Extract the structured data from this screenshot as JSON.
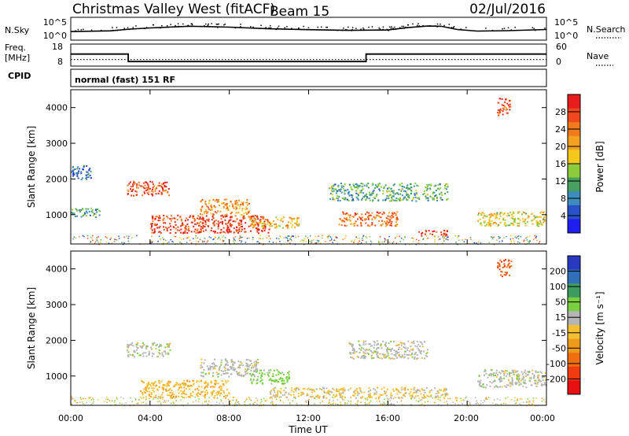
{
  "header": {
    "station": "Christmas Valley West (fitACF)",
    "beam": "Beam 15",
    "date": "02/Jul/2016"
  },
  "nsky_panel": {
    "left_label": "N.Sky",
    "right_label": "N.Search",
    "left_ticks": [
      "10^5",
      "10^0"
    ],
    "right_ticks": [
      "10^5",
      "10^0"
    ]
  },
  "freq_panel": {
    "left_label_line1": "Freq.",
    "left_label_line2": "[MHz]",
    "right_label": "Nave",
    "left_ticks": [
      "18",
      "8"
    ],
    "right_ticks": [
      "60",
      "0"
    ]
  },
  "cpid": {
    "label": "CPID",
    "value": "normal (fast) 151 RF"
  },
  "power_panel": {
    "ylabel": "Slant Range [km]",
    "colorbar_label": "Power [dB]",
    "colorbar_ticks": [
      "28",
      "24",
      "20",
      "16",
      "12",
      "8",
      "4"
    ],
    "colorbar_colors": [
      "#e81c1c",
      "#f0481c",
      "#f07a1c",
      "#f4a020",
      "#f4c81c",
      "#8ccc3c",
      "#48a060",
      "#3c8cbc",
      "#2850c8",
      "#1e1ef0"
    ]
  },
  "velocity_panel": {
    "ylabel": "Slant Range [km]",
    "colorbar_label": "Velocity [m s⁻¹]",
    "colorbar_ticks": [
      "200",
      "100",
      "50",
      "15",
      "-15",
      "-50",
      "-100",
      "-200"
    ],
    "colorbar_colors": [
      "#2838c0",
      "#3070b8",
      "#3c9c60",
      "#78d040",
      "#b4b4b4",
      "#f4c030",
      "#f09a1c",
      "#f06e10",
      "#f03c10",
      "#e81010"
    ]
  },
  "x_axis": {
    "ticks": [
      "00:00",
      "04:00",
      "08:00",
      "12:00",
      "16:00",
      "20:00",
      "00:00"
    ],
    "label": "Time UT"
  },
  "chart_data": {
    "type": "heatmap",
    "x_range_hours": [
      0,
      24
    ],
    "y_range_km": [
      180,
      4500
    ],
    "y_ticks_km": [
      1000,
      2000,
      3000,
      4000
    ],
    "nsky": {
      "scale": "log",
      "ylim": [
        1,
        100000
      ],
      "x_hours": [
        0,
        2,
        3,
        4,
        6,
        8,
        10,
        12,
        14,
        16,
        17,
        18,
        18.7,
        19.5,
        20.5,
        22,
        24
      ],
      "values": [
        60,
        90,
        250,
        500,
        1400,
        800,
        300,
        180,
        120,
        150,
        600,
        1500,
        1300,
        200,
        80,
        100,
        200
      ]
    },
    "frequency": {
      "ylim": [
        8,
        18
      ],
      "x_hours": [
        0,
        2.9,
        2.9,
        14.9,
        14.9,
        24
      ],
      "values_mhz": [
        15,
        15,
        10,
        10,
        15,
        15
      ]
    },
    "nave": {
      "ylim": [
        0,
        60
      ],
      "approx_value": 20
    },
    "power_regions": [
      {
        "t": [
          2.8,
          5.0
        ],
        "r": [
          1550,
          1950
        ],
        "level_db": 27
      },
      {
        "t": [
          4.0,
          10.0
        ],
        "r": [
          500,
          1000
        ],
        "level_db": 28
      },
      {
        "t": [
          6.5,
          9.0
        ],
        "r": [
          1000,
          1450
        ],
        "level_db": 22
      },
      {
        "t": [
          9.0,
          11.5
        ],
        "r": [
          650,
          950
        ],
        "level_db": 20
      },
      {
        "t": [
          13.5,
          16.5
        ],
        "r": [
          700,
          1100
        ],
        "level_db": 24
      },
      {
        "t": [
          17.5,
          19.0
        ],
        "r": [
          420,
          580
        ],
        "level_db": 28
      },
      {
        "t": [
          20.5,
          24.0
        ],
        "r": [
          700,
          1100
        ],
        "level_db": 18
      },
      {
        "t": [
          13.0,
          19.0
        ],
        "r": [
          1400,
          1900
        ],
        "level_db": 12
      },
      {
        "t": [
          0.0,
          1.5
        ],
        "r": [
          950,
          1200
        ],
        "level_db": 12
      },
      {
        "t": [
          0.0,
          1.0
        ],
        "r": [
          2000,
          2400
        ],
        "level_db": 8
      },
      {
        "t": [
          21.5,
          22.2
        ],
        "r": [
          3800,
          4300
        ],
        "level_db": 26
      }
    ],
    "velocity_regions": [
      {
        "t": [
          2.8,
          5.0
        ],
        "r": [
          1550,
          1950
        ],
        "level_ms": 0
      },
      {
        "t": [
          3.5,
          8.0
        ],
        "r": [
          400,
          900
        ],
        "level_ms": -40
      },
      {
        "t": [
          6.5,
          9.5
        ],
        "r": [
          1000,
          1500
        ],
        "level_ms": 0
      },
      {
        "t": [
          9.0,
          11.0
        ],
        "r": [
          800,
          1200
        ],
        "level_ms": 30
      },
      {
        "t": [
          10.0,
          19.0
        ],
        "r": [
          400,
          700
        ],
        "level_ms": -20
      },
      {
        "t": [
          14.0,
          18.0
        ],
        "r": [
          1500,
          2000
        ],
        "level_ms": 0
      },
      {
        "t": [
          20.5,
          24.0
        ],
        "r": [
          700,
          1200
        ],
        "level_ms": 0
      },
      {
        "t": [
          21.5,
          22.2
        ],
        "r": [
          3800,
          4300
        ],
        "level_ms": -200
      }
    ]
  }
}
